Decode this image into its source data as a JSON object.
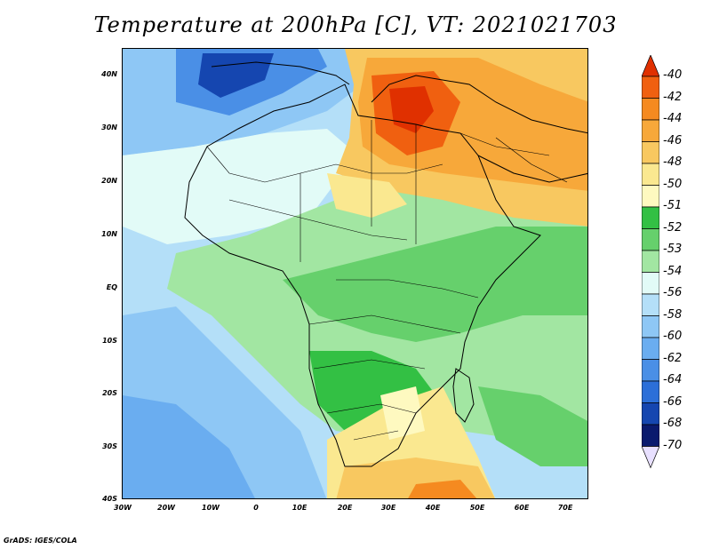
{
  "title": "Temperature at 200hPa [C], VT: 2021021703",
  "y_axis_labels": [
    "40N",
    "30N",
    "20N",
    "10N",
    "EQ",
    "10S",
    "20S",
    "30S",
    "40S"
  ],
  "x_axis_labels": [
    "30W",
    "20W",
    "10W",
    "0",
    "10E",
    "20E",
    "30E",
    "40E",
    "50E",
    "60E",
    "70E"
  ],
  "colorbar": {
    "labels": [
      "-40",
      "-42",
      "-44",
      "-46",
      "-48",
      "-50",
      "-51",
      "-52",
      "-53",
      "-54",
      "-56",
      "-58",
      "-60",
      "-62",
      "-64",
      "-66",
      "-68",
      "-70"
    ],
    "colors": [
      "#e03000",
      "#f06010",
      "#f58a20",
      "#f7a83a",
      "#f8c860",
      "#fae890",
      "#fef9c0",
      "#33c044",
      "#66d06c",
      "#a2e6a2",
      "#e2fbf7",
      "#b4dff8",
      "#8ec7f5",
      "#6aadf0",
      "#4a8fe6",
      "#2c6fd8",
      "#1546b0",
      "#0a1a6e"
    ],
    "top_color": "#e03000",
    "bottom_color": "#e8e0ff"
  },
  "credit": "GrADS: IGES/COLA"
}
